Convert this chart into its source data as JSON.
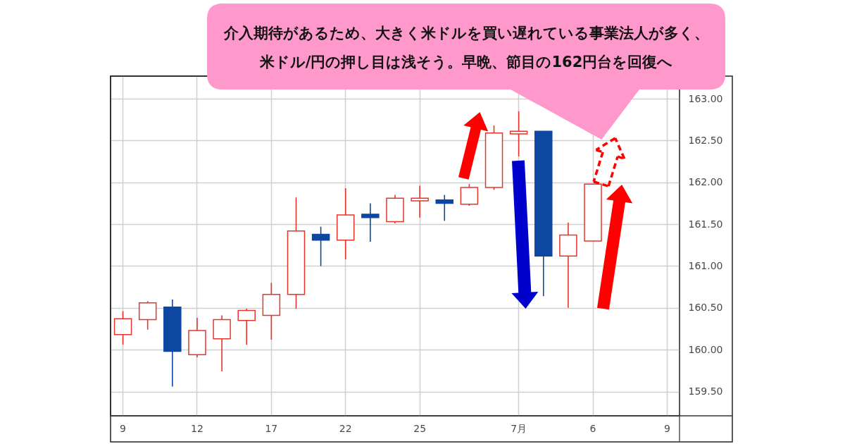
{
  "chart_data": {
    "type": "candlestick",
    "annotations": [
      "介入期待があるため、大きく米ドルを買い遅れている事業法人が多く、",
      "米ドル/円の押し目は浅そう。早晩、節目の162円台を回復へ"
    ],
    "categories": [
      "9",
      null,
      null,
      "12",
      null,
      null,
      "17",
      null,
      null,
      "22",
      null,
      null,
      "25",
      null,
      null,
      null,
      "7月",
      null,
      null,
      "6",
      null,
      null,
      "9"
    ],
    "ohlc": [
      [
        160.18,
        160.46,
        160.06,
        160.37
      ],
      [
        160.36,
        160.58,
        160.24,
        160.56
      ],
      [
        160.51,
        160.6,
        159.56,
        159.98
      ],
      [
        159.94,
        160.38,
        159.91,
        160.23
      ],
      [
        160.13,
        160.41,
        159.74,
        160.36
      ],
      [
        160.35,
        160.49,
        160.06,
        160.47
      ],
      [
        160.41,
        160.8,
        160.12,
        160.66
      ],
      [
        160.66,
        161.82,
        160.49,
        161.42
      ],
      [
        161.38,
        161.47,
        161.0,
        161.31
      ],
      [
        161.31,
        161.93,
        161.08,
        161.61
      ],
      [
        161.62,
        161.75,
        161.29,
        161.58
      ],
      [
        161.53,
        161.85,
        161.51,
        161.81
      ],
      [
        161.78,
        161.96,
        161.58,
        161.81
      ],
      [
        161.79,
        161.85,
        161.54,
        161.75
      ],
      [
        161.74,
        161.98,
        161.72,
        161.94
      ],
      [
        161.94,
        162.68,
        161.91,
        162.59
      ],
      [
        162.58,
        162.85,
        162.31,
        162.61
      ],
      [
        162.61,
        162.61,
        160.64,
        161.12
      ],
      [
        161.12,
        161.52,
        160.5,
        161.37
      ],
      [
        161.3,
        161.98,
        161.3,
        161.98
      ],
      null,
      null,
      null
    ],
    "colors": [
      "#e8352b",
      "#e8352b",
      "#0d47a1",
      "#e8352b",
      "#e8352b",
      "#e8352b",
      "#e8352b",
      "#e8352b",
      "#0d47a1",
      "#e8352b",
      "#0d47a1",
      "#e8352b",
      "#e8352b",
      "#0d47a1",
      "#e8352b",
      "#e8352b",
      "#e8352b",
      "#0d47a1",
      "#e8352b",
      "#e8352b",
      null,
      null,
      null
    ],
    "ylim": [
      159.21,
      163.27
    ],
    "yticks": [
      {
        "value": 159.5,
        "label": "159.50"
      },
      {
        "value": 160,
        "label": "160.00"
      },
      {
        "value": 160.5,
        "label": "160.50"
      },
      {
        "value": 161,
        "label": "161.00"
      },
      {
        "value": 161.5,
        "label": "161.50"
      },
      {
        "value": 162,
        "label": "162.00"
      },
      {
        "value": 162.5,
        "label": "162.50"
      },
      {
        "value": 163,
        "label": "163.00"
      }
    ],
    "grid": true
  }
}
